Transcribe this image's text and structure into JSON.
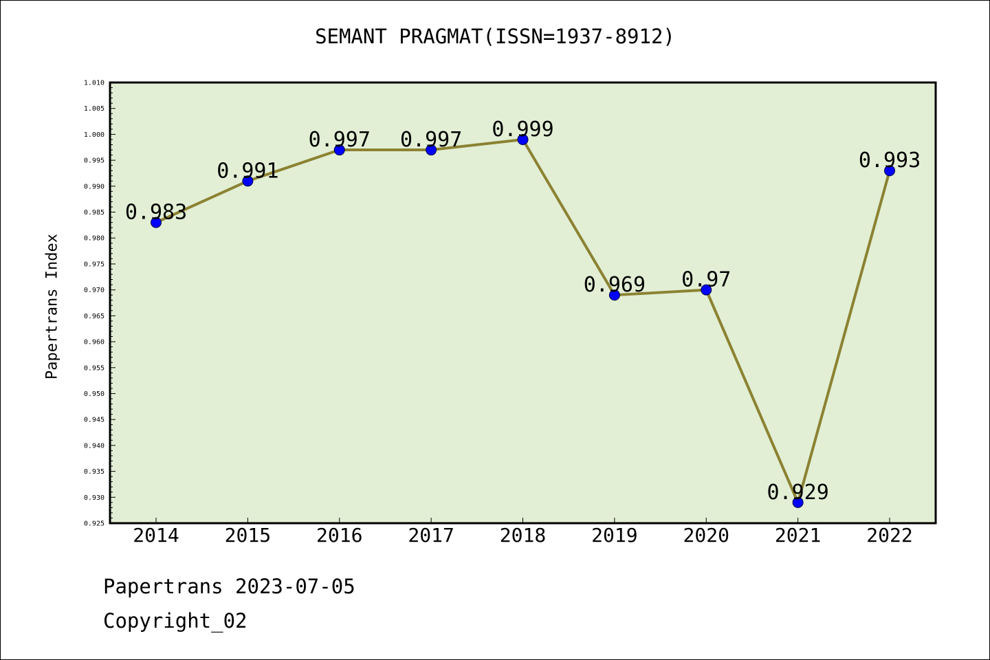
{
  "chart_data": {
    "type": "line",
    "title": "SEMANT PRAGMAT(ISSN=1937-8912)",
    "xlabel": "",
    "ylabel": "Papertrans Index",
    "categories": [
      "2014",
      "2015",
      "2016",
      "2017",
      "2018",
      "2019",
      "2020",
      "2021",
      "2022"
    ],
    "series": [
      {
        "values": [
          0.983,
          0.991,
          0.997,
          0.997,
          0.999,
          0.969,
          0.97,
          0.929,
          0.993
        ],
        "data_labels": [
          "0.983",
          "0.991",
          "0.997",
          "0.997",
          "0.999",
          "0.969",
          "0.97",
          "0.929",
          "0.993"
        ],
        "line_color": "#8b8232",
        "marker_color": "#0000ff"
      }
    ],
    "ylim": [
      0.925,
      1.01
    ],
    "yticks": [
      "0.925",
      "0.930",
      "0.935",
      "0.940",
      "0.945",
      "0.950",
      "0.955",
      "0.960",
      "0.965",
      "0.970",
      "0.975",
      "0.980",
      "0.985",
      "0.990",
      "0.995",
      "1.000",
      "1.005",
      "1.010"
    ],
    "plot_background": "#e2efd5",
    "grid": false,
    "legend": "none"
  },
  "footer": {
    "line1": "Papertrans 2023-07-05",
    "line2": "Copyright_02"
  }
}
